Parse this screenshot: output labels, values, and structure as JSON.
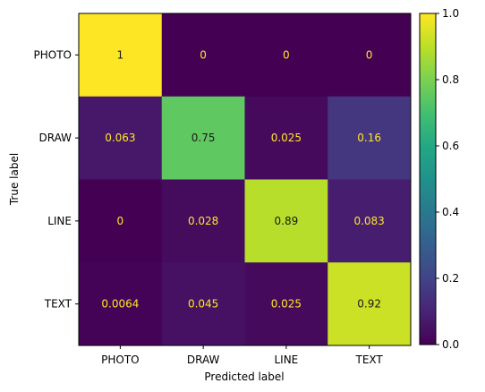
{
  "chart_data": {
    "type": "heatmap",
    "title": "",
    "xlabel": "Predicted label",
    "ylabel": "True label",
    "x_categories": [
      "PHOTO",
      "DRAW",
      "LINE",
      "TEXT"
    ],
    "y_categories": [
      "PHOTO",
      "DRAW",
      "LINE",
      "TEXT"
    ],
    "values": [
      [
        1,
        0,
        0,
        0
      ],
      [
        0.063,
        0.75,
        0.025,
        0.16
      ],
      [
        0,
        0.028,
        0.89,
        0.083
      ],
      [
        0.0064,
        0.045,
        0.025,
        0.92
      ]
    ],
    "cell_labels": [
      [
        "1",
        "0",
        "0",
        "0"
      ],
      [
        "0.063",
        "0.75",
        "0.025",
        "0.16"
      ],
      [
        "0",
        "0.028",
        "0.89",
        "0.083"
      ],
      [
        "0.0064",
        "0.045",
        "0.025",
        "0.92"
      ]
    ],
    "colormap": "viridis",
    "vmin": 0,
    "vmax": 1,
    "colorbar_ticks": [
      "0.0",
      "0.2",
      "0.4",
      "0.6",
      "0.8",
      "1.0"
    ],
    "colorbar_tick_values": [
      0,
      0.2,
      0.4,
      0.6,
      0.8,
      1.0
    ],
    "label_color_dark_bg": "#fde725",
    "label_color_light_bg": "#1a1a1a",
    "grid": false
  }
}
